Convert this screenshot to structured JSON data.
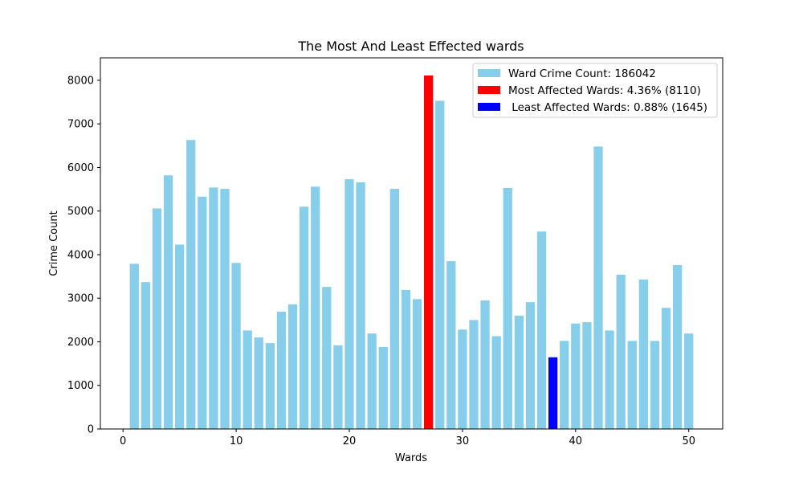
{
  "chart_data": {
    "type": "bar",
    "title": "The Most And Least Effected wards",
    "xlabel": "Wards",
    "ylabel": "Crime Count",
    "xlim": [
      -2,
      53
    ],
    "ylim": [
      0,
      8515
    ],
    "xticks": [
      "0",
      "10",
      "20",
      "30",
      "40",
      "50"
    ],
    "xtick_values": [
      0,
      10,
      20,
      30,
      40,
      50
    ],
    "yticks": [
      "0",
      "1000",
      "2000",
      "3000",
      "4000",
      "5000",
      "6000",
      "7000",
      "8000"
    ],
    "ytick_values": [
      0,
      1000,
      2000,
      3000,
      4000,
      5000,
      6000,
      7000,
      8000
    ],
    "grid": false,
    "legend_position": "top-right",
    "x": [
      1,
      2,
      3,
      4,
      5,
      6,
      7,
      8,
      9,
      10,
      11,
      12,
      13,
      14,
      15,
      16,
      17,
      18,
      19,
      20,
      21,
      22,
      23,
      24,
      25,
      26,
      27,
      28,
      29,
      30,
      31,
      32,
      33,
      34,
      35,
      36,
      37,
      38,
      39,
      40,
      41,
      42,
      43,
      44,
      45,
      46,
      47,
      48,
      49,
      50
    ],
    "series": [
      {
        "name": "Ward Crime Count: 186042",
        "color": "#87CEEB",
        "values": [
          3790,
          3370,
          5060,
          5820,
          4230,
          6630,
          5330,
          5540,
          5510,
          3810,
          2260,
          2100,
          1970,
          2690,
          2860,
          5100,
          5560,
          3260,
          1920,
          5730,
          5660,
          2190,
          1880,
          5510,
          3190,
          2980,
          null,
          7530,
          3850,
          2280,
          2500,
          2950,
          2130,
          5530,
          2600,
          2910,
          4530,
          null,
          2020,
          2420,
          2450,
          6480,
          2260,
          3540,
          2020,
          3430,
          2020,
          2780,
          3760,
          2190
        ]
      },
      {
        "name": "Most Affected Wards: 4.36% (8110)",
        "color": "#FF0000",
        "ward": 27,
        "value": 8110
      },
      {
        "name": " Least Affected Wards: 0.88% (1645)",
        "color": "#0000FF",
        "ward": 38,
        "value": 1645
      }
    ]
  }
}
